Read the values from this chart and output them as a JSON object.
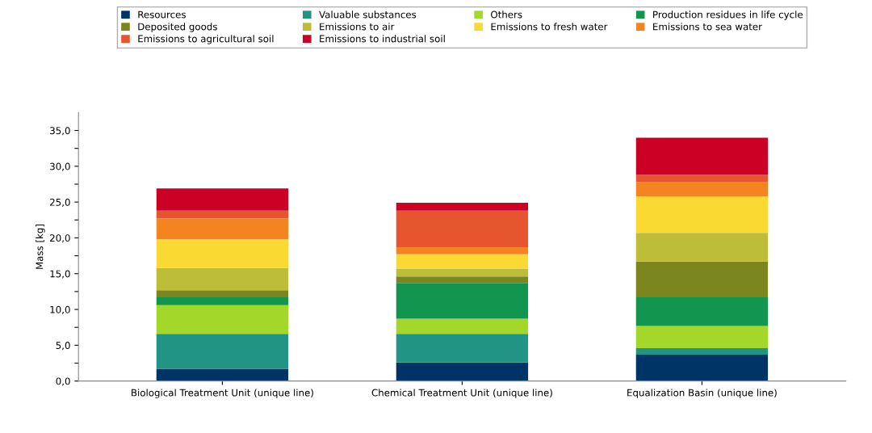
{
  "chart_data": {
    "type": "bar",
    "stacked": true,
    "ylabel": "Mass [kg]",
    "categories": [
      "Biological Treatment Unit (unique line)",
      "Chemical Treatment Unit (unique line)",
      "Equalization Basin (unique line)"
    ],
    "series": [
      {
        "name": "Resources",
        "color": "#003366",
        "values": [
          1.7,
          2.6,
          3.7
        ]
      },
      {
        "name": "Valuable substances",
        "color": "#229485",
        "values": [
          4.9,
          4.0,
          0.9
        ]
      },
      {
        "name": "Others",
        "color": "#a3d72a",
        "values": [
          4.0,
          2.1,
          3.1
        ]
      },
      {
        "name": "Production residues in life cycle",
        "color": "#12964f",
        "values": [
          1.1,
          5.0,
          4.0
        ]
      },
      {
        "name": "Deposited goods",
        "color": "#7b871e",
        "values": [
          1.0,
          0.9,
          5.0
        ]
      },
      {
        "name": "Emissions to air",
        "color": "#bebd3a",
        "values": [
          3.1,
          1.1,
          4.0
        ]
      },
      {
        "name": "Emissions to fresh water",
        "color": "#f9d932",
        "values": [
          4.0,
          2.0,
          5.1
        ]
      },
      {
        "name": "Emissions to sea water",
        "color": "#f38420",
        "values": [
          2.9,
          1.0,
          2.0
        ]
      },
      {
        "name": "Emissions to agricultural soil",
        "color": "#e6552e",
        "values": [
          1.1,
          5.1,
          1.0
        ]
      },
      {
        "name": "Emissions to industrial soil",
        "color": "#cc0025",
        "values": [
          3.1,
          1.1,
          5.2
        ]
      }
    ],
    "ylim": [
      0,
      37.5
    ],
    "yticks": [
      {
        "value": 0,
        "label": "0,0"
      },
      {
        "value": 2.5,
        "label": null
      },
      {
        "value": 5,
        "label": "5,0"
      },
      {
        "value": 7.5,
        "label": null
      },
      {
        "value": 10,
        "label": "10,0"
      },
      {
        "value": 12.5,
        "label": null
      },
      {
        "value": 15,
        "label": "15,0"
      },
      {
        "value": 17.5,
        "label": null
      },
      {
        "value": 20,
        "label": "20,0"
      },
      {
        "value": 22.5,
        "label": null
      },
      {
        "value": 25,
        "label": "25,0"
      },
      {
        "value": 27.5,
        "label": null
      },
      {
        "value": 30,
        "label": "30,0"
      },
      {
        "value": 32.5,
        "label": null
      },
      {
        "value": 35,
        "label": "35,0"
      }
    ],
    "grid": false,
    "legend": "top"
  }
}
